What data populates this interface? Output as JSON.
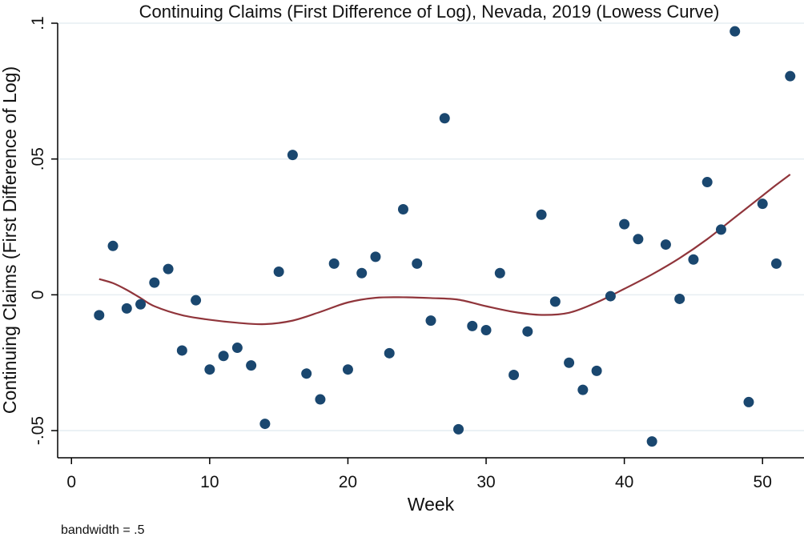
{
  "chart_data": {
    "type": "scatter",
    "title": "Continuing Claims (First Difference of Log), Nevada, 2019 (Lowess Curve)",
    "xlabel": "Week",
    "ylabel": "Continuing Claims (First Difference of Log)",
    "note": "bandwidth = .5",
    "xlim": [
      -1,
      53
    ],
    "ylim": [
      -0.06,
      0.1
    ],
    "xticks": [
      0,
      10,
      20,
      30,
      40,
      50
    ],
    "xtick_labels": [
      "0",
      "10",
      "20",
      "30",
      "40",
      "50"
    ],
    "yticks": [
      -0.05,
      0,
      0.05,
      0.1
    ],
    "ytick_labels": [
      "-.05",
      "0",
      ".05",
      ".1"
    ],
    "grid": true,
    "colors": {
      "points": "#1a476f",
      "curve": "#90353b",
      "grid": "#e6eef2",
      "axis": "#000000"
    },
    "series": [
      {
        "type": "scatter",
        "x": [
          2,
          3,
          4,
          5,
          6,
          7,
          8,
          9,
          10,
          11,
          12,
          13,
          14,
          15,
          16,
          17,
          18,
          19,
          20,
          21,
          22,
          23,
          24,
          25,
          26,
          27,
          28,
          29,
          30,
          31,
          32,
          33,
          34,
          35,
          36,
          37,
          38,
          39,
          40,
          41,
          42,
          43,
          44,
          45,
          46,
          47,
          48,
          49,
          50,
          51,
          52
        ],
        "y": [
          -0.0075,
          0.018,
          -0.005,
          -0.0035,
          0.0045,
          0.0095,
          -0.0205,
          -0.002,
          -0.0275,
          -0.0225,
          -0.0195,
          -0.026,
          -0.0475,
          0.0085,
          0.0515,
          -0.029,
          -0.0385,
          0.0115,
          -0.0275,
          0.008,
          0.014,
          -0.0215,
          0.0315,
          0.0115,
          -0.0095,
          0.065,
          -0.0495,
          -0.0115,
          -0.013,
          0.008,
          -0.0295,
          -0.0135,
          0.0295,
          -0.0025,
          -0.025,
          -0.035,
          -0.028,
          -0.0005,
          0.026,
          0.0205,
          -0.054,
          0.0185,
          -0.0015,
          0.013,
          0.0415,
          0.024,
          0.097,
          -0.0395,
          0.0335,
          0.0115,
          0.0805
        ]
      },
      {
        "type": "line",
        "x": [
          2,
          3,
          4,
          5,
          6,
          8,
          10,
          12,
          14,
          16,
          18,
          20,
          22,
          24,
          26,
          28,
          30,
          32,
          34,
          36,
          38,
          40,
          42,
          44,
          46,
          48,
          50,
          51,
          52
        ],
        "y": [
          0.0058,
          0.0043,
          0.0018,
          -0.0012,
          -0.0042,
          -0.0075,
          -0.0092,
          -0.0103,
          -0.0108,
          -0.0095,
          -0.0063,
          -0.0028,
          -0.0011,
          -0.0009,
          -0.0012,
          -0.0018,
          -0.0042,
          -0.0063,
          -0.0074,
          -0.0066,
          -0.0028,
          0.0022,
          0.0075,
          0.0135,
          0.0205,
          0.0285,
          0.0365,
          0.0405,
          0.0443
        ]
      }
    ]
  }
}
